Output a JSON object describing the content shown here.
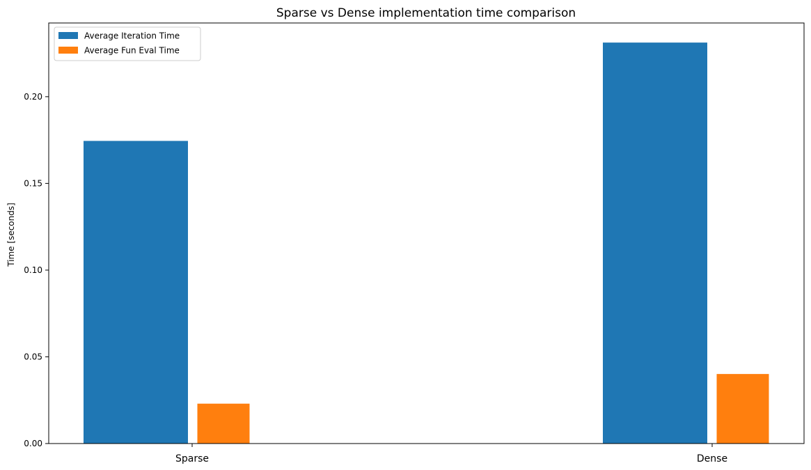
{
  "chart_data": {
    "type": "bar",
    "title": "Sparse vs Dense implementation time comparison",
    "xlabel": "",
    "ylabel": "Time [seconds]",
    "categories": [
      "Sparse",
      "Dense"
    ],
    "series": [
      {
        "name": "Average Iteration Time",
        "color": "#1f77b4",
        "values": [
          0.1745,
          0.2312
        ]
      },
      {
        "name": "Average Fun Eval Time",
        "color": "#ff7f0e",
        "values": [
          0.023,
          0.0401
        ]
      }
    ],
    "ylim": [
      0,
      0.2425
    ],
    "yticks": [
      "0.00",
      "0.05",
      "0.10",
      "0.15",
      "0.20"
    ],
    "ytick_values": [
      0,
      0.05,
      0.1,
      0.15,
      0.2
    ],
    "grid": false,
    "legend_position": "top-left"
  }
}
